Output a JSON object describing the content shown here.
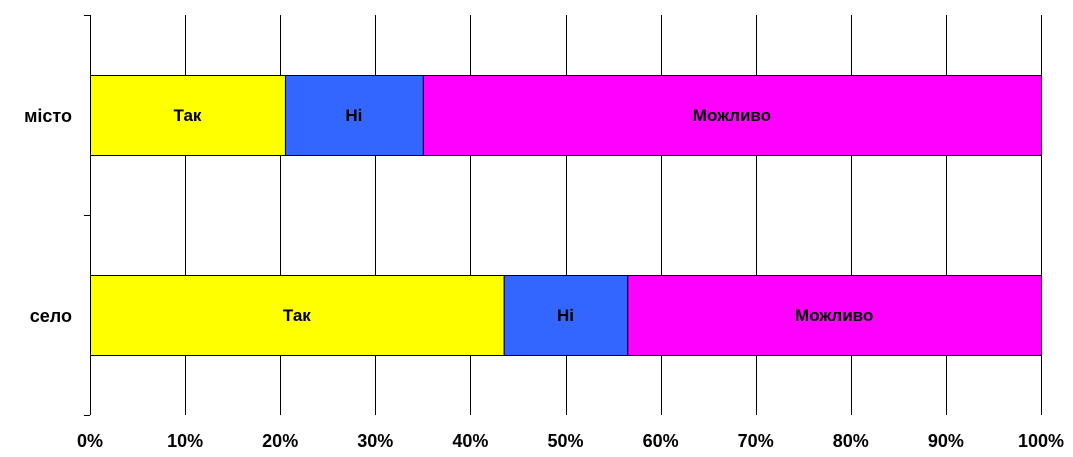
{
  "chart_data": {
    "type": "bar",
    "orientation": "horizontal",
    "stacked": "percent",
    "title": "",
    "xlabel": "",
    "ylabel": "",
    "categories": [
      "місто",
      "село"
    ],
    "series": [
      {
        "name": "Так",
        "values": [
          20.5,
          43.5
        ],
        "color": "#FFFF00",
        "segment_label": "Так"
      },
      {
        "name": "Ні",
        "values": [
          14.5,
          13.0
        ],
        "color": "#3366FF",
        "segment_label": "Ні"
      },
      {
        "name": "Можливо",
        "values": [
          65.0,
          43.5
        ],
        "color": "#FF00FF",
        "segment_label": "Можливо"
      }
    ],
    "xlim": [
      0,
      100
    ],
    "x_ticks": [
      0,
      10,
      20,
      30,
      40,
      50,
      60,
      70,
      80,
      90,
      100
    ],
    "x_tick_labels": [
      "0%",
      "10%",
      "20%",
      "30%",
      "40%",
      "50%",
      "60%",
      "70%",
      "80%",
      "90%",
      "100%"
    ],
    "grid": true,
    "legend": "none"
  }
}
